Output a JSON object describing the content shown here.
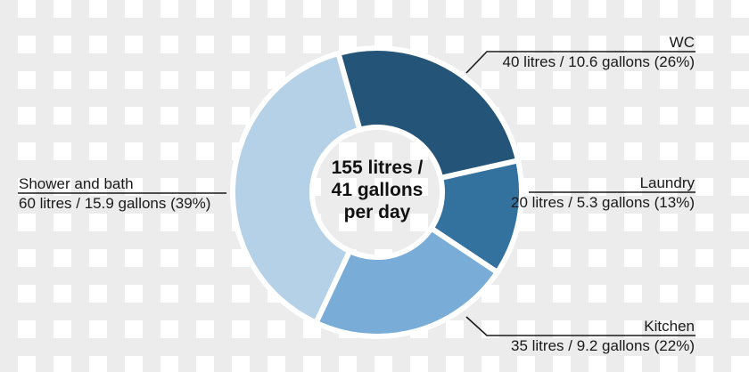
{
  "chart_data": {
    "type": "pie",
    "subtype": "donut",
    "title": "",
    "center_label": {
      "line1": "155 litres /",
      "line2": "41 gallons",
      "line3": "per day"
    },
    "total": {
      "litres": 155,
      "gallons": 41,
      "unit_period": "per day"
    },
    "categories": [
      "WC",
      "Laundry",
      "Kitchen",
      "Shower and bath"
    ],
    "values": [
      40,
      20,
      35,
      60
    ],
    "gallons": [
      10.6,
      5.3,
      9.2,
      15.9
    ],
    "percentages": [
      26,
      13,
      22,
      39
    ],
    "colors": [
      "#245579",
      "#33729f",
      "#79acd6",
      "#b5d1e8"
    ],
    "slices": [
      {
        "name": "WC",
        "litres": 40,
        "gallons": 10.6,
        "percent": 26,
        "color": "#245579",
        "label_line1": "WC",
        "label_line2": "40 litres / 10.6 gallons (26%)"
      },
      {
        "name": "Laundry",
        "litres": 20,
        "gallons": 5.3,
        "percent": 13,
        "color": "#33729f",
        "label_line1": "Laundry",
        "label_line2": "20 litres / 5.3 gallons (13%)"
      },
      {
        "name": "Kitchen",
        "litres": 35,
        "gallons": 9.2,
        "percent": 22,
        "color": "#79acd6",
        "label_line1": "Kitchen",
        "label_line2": "35 litres / 9.2 gallons (22%)"
      },
      {
        "name": "Shower and bath",
        "litres": 60,
        "gallons": 15.9,
        "percent": 39,
        "color": "#b5d1e8",
        "label_line1": "Shower and bath",
        "label_line2": "60 litres / 15.9 gallons (39%)"
      }
    ],
    "start_angle_deg": -15.6,
    "legend": "none (callout labels with leader lines)"
  }
}
